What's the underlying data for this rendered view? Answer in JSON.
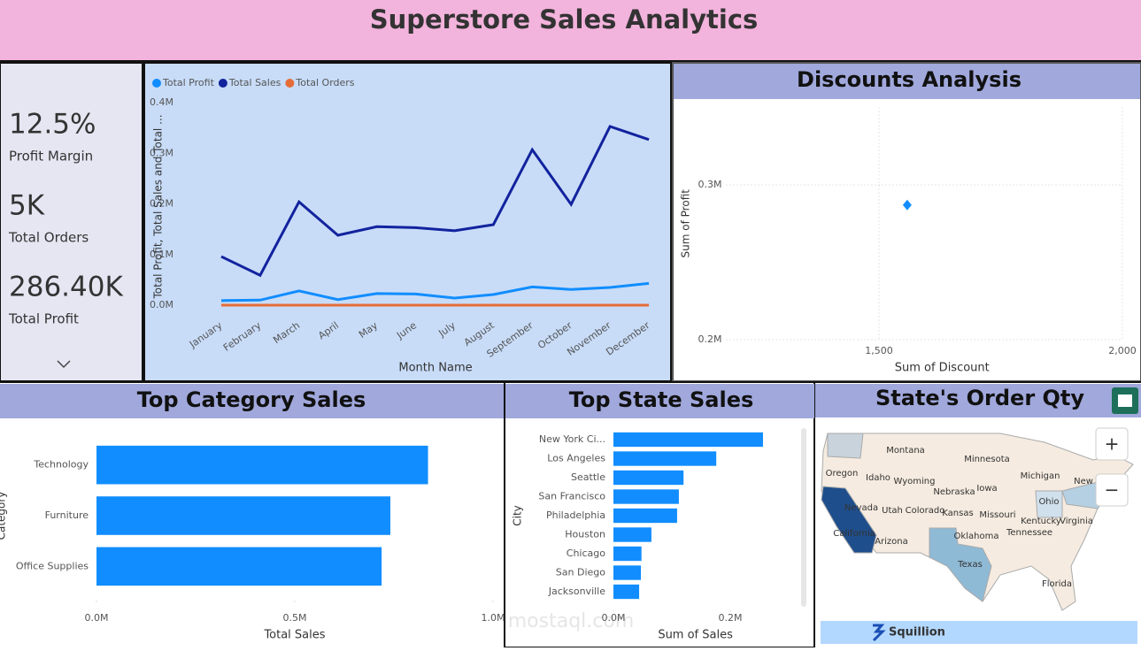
{
  "header": {
    "title": "Superstore Sales Analytics"
  },
  "kpis": [
    {
      "value": "12.5%",
      "label": "Profit Margin"
    },
    {
      "value": "5K",
      "label": "Total Orders"
    },
    {
      "value": "286.40K",
      "label": "Total Profit"
    }
  ],
  "chart_data": [
    {
      "type": "line",
      "categories": [
        "January",
        "February",
        "March",
        "April",
        "May",
        "June",
        "July",
        "August",
        "September",
        "October",
        "November",
        "December"
      ],
      "series": [
        {
          "name": "Total Profit",
          "color": "#118dff",
          "values": [
            9000,
            10000,
            28000,
            11000,
            23000,
            22000,
            14000,
            21000,
            36000,
            31000,
            35000,
            43000
          ]
        },
        {
          "name": "Total Sales",
          "color": "#12239e",
          "values": [
            96000,
            59000,
            204000,
            138000,
            155000,
            153000,
            147000,
            159000,
            307000,
            199000,
            353000,
            327000
          ]
        },
        {
          "name": "Total Orders",
          "color": "#e66c37",
          "values": [
            0,
            0,
            0,
            0,
            0,
            0,
            0,
            0,
            0,
            0,
            0,
            0
          ]
        }
      ],
      "ylim": [
        0,
        400000
      ],
      "yticks": [
        {
          "value": 0,
          "label": "0.0M"
        },
        {
          "value": 100000,
          "label": "0.1M"
        },
        {
          "value": 200000,
          "label": "0.2M"
        },
        {
          "value": 300000,
          "label": "0.3M"
        },
        {
          "value": 400000,
          "label": "0.4M"
        }
      ],
      "y_label": "Total Profit, Total Sales and Total ...",
      "x_label": "Month Name",
      "grid": false,
      "legend": "top"
    },
    {
      "type": "scatter",
      "title": "Discounts Analysis",
      "x": [
        1558
      ],
      "values": [
        287000
      ],
      "color": "#118dff",
      "xlim": [
        1110,
        2000
      ],
      "ylim": [
        200000,
        350000
      ],
      "xticks": [
        {
          "value": 1500,
          "label": "1,500"
        },
        {
          "value": 2000,
          "label": "2,000"
        }
      ],
      "yticks": [
        {
          "value": 200000,
          "label": "0.2M"
        },
        {
          "value": 300000,
          "label": "0.3M"
        }
      ],
      "x_label": "Sum of Discount",
      "y_label": "Sum of Profit",
      "grid": true
    },
    {
      "type": "hbar",
      "title": "Top Category Sales",
      "categories": [
        "Technology",
        "Furniture",
        "Office Supplies"
      ],
      "values": [
        836000,
        741000,
        719000
      ],
      "color": "#118dff",
      "xlim": [
        0,
        1000000
      ],
      "xticks": [
        {
          "value": 0,
          "label": "0.0M"
        },
        {
          "value": 500000,
          "label": "0.5M"
        },
        {
          "value": 1000000,
          "label": "1.0M"
        }
      ],
      "x_label": "Total Sales",
      "y_label": "Category"
    },
    {
      "type": "hbar",
      "title": "Top State Sales",
      "categories": [
        "New York Ci...",
        "Los Angeles",
        "Seattle",
        "San Francisco",
        "Philadelphia",
        "Houston",
        "Chicago",
        "San Diego",
        "Jacksonville"
      ],
      "values": [
        256000,
        176000,
        120000,
        112000,
        109000,
        65000,
        48000,
        47000,
        44000
      ],
      "color": "#118dff",
      "xlim": [
        0,
        320000
      ],
      "xticks": [
        {
          "value": 0,
          "label": "0.0M"
        },
        {
          "value": 200000,
          "label": "0.2M"
        }
      ],
      "x_label": "Sum of Sales",
      "y_label": "City"
    }
  ],
  "map": {
    "title": "State's Order Qty",
    "labels": [
      "Montana",
      "Minnesota",
      "Oregon",
      "Idaho",
      "Wyoming",
      "Michigan",
      "New",
      "Nebraska",
      "Iowa",
      "Nevada",
      "Utah",
      "Colorado",
      "Kansas",
      "Missouri",
      "Ohio",
      "Kentucky",
      "Virginia",
      "California",
      "Arizona",
      "Oklahoma",
      "Tennessee",
      "Texas",
      "Florida"
    ],
    "zoom_in": "+",
    "zoom_out": "−",
    "brand": "Squillion",
    "watermark": "mostaql.com"
  }
}
